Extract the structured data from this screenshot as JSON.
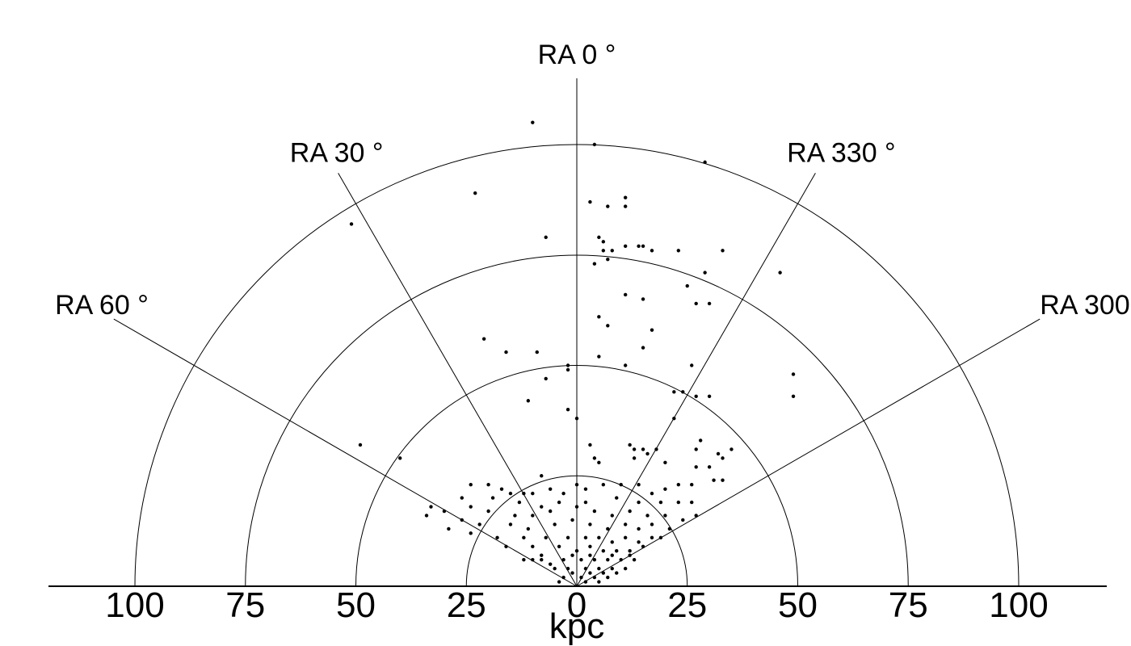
{
  "chart_data": {
    "type": "scatter",
    "projection": "polar wedge (cone diagram), semicircle",
    "xlabel": "kpc",
    "radius_ticks": [
      25,
      50,
      75,
      100
    ],
    "radius_tick_labels_left": [
      "100",
      "75",
      "50",
      "25"
    ],
    "center_tick_label": "0",
    "radius_tick_labels_right": [
      "25",
      "50",
      "75",
      "100"
    ],
    "rlim": [
      0,
      100
    ],
    "ra_angles_deg": [
      60,
      30,
      0,
      330,
      300
    ],
    "ra_labels": [
      "RA 60 °",
      "RA 30 °",
      "RA 0 °",
      "RA 330 °",
      "RA 300 °"
    ],
    "grid": true,
    "series": [
      {
        "points_xy_kpc": [
          [
            -10,
            105
          ],
          [
            4,
            100
          ],
          [
            29,
            96
          ],
          [
            -23,
            89
          ],
          [
            -51,
            82
          ],
          [
            3,
            87
          ],
          [
            11,
            88
          ],
          [
            7,
            86
          ],
          [
            11,
            86
          ],
          [
            -7,
            79
          ],
          [
            5,
            79
          ],
          [
            6,
            78
          ],
          [
            6,
            76
          ],
          [
            8,
            76
          ],
          [
            11,
            77
          ],
          [
            14,
            77
          ],
          [
            15,
            77
          ],
          [
            17,
            76
          ],
          [
            23,
            76
          ],
          [
            33,
            76
          ],
          [
            7,
            74
          ],
          [
            4,
            73
          ],
          [
            29,
            71
          ],
          [
            46,
            71
          ],
          [
            25,
            68
          ],
          [
            11,
            66
          ],
          [
            15,
            65
          ],
          [
            30,
            64
          ],
          [
            27,
            64
          ],
          [
            5,
            61
          ],
          [
            7,
            59
          ],
          [
            -21,
            56
          ],
          [
            17,
            58
          ],
          [
            -16,
            53
          ],
          [
            -9,
            53
          ],
          [
            -2,
            50
          ],
          [
            -2,
            49
          ],
          [
            5,
            52
          ],
          [
            11,
            50
          ],
          [
            15,
            54
          ],
          [
            26,
            50
          ],
          [
            -7,
            47
          ],
          [
            49,
            48
          ],
          [
            22,
            44
          ],
          [
            24,
            44
          ],
          [
            27,
            43
          ],
          [
            30,
            43
          ],
          [
            49,
            43
          ],
          [
            -11,
            42
          ],
          [
            -2,
            40
          ],
          [
            0,
            38
          ],
          [
            22,
            38
          ],
          [
            -49,
            32
          ],
          [
            3,
            32
          ],
          [
            12,
            32
          ],
          [
            13,
            31
          ],
          [
            15,
            31
          ],
          [
            18,
            31
          ],
          [
            27,
            31
          ],
          [
            28,
            33
          ],
          [
            35,
            31
          ],
          [
            4,
            29
          ],
          [
            -40,
            29
          ],
          [
            5,
            28
          ],
          [
            13,
            29
          ],
          [
            16,
            30
          ],
          [
            20,
            28
          ],
          [
            32,
            30
          ],
          [
            33,
            29
          ],
          [
            27,
            27
          ],
          [
            30,
            27
          ],
          [
            -8,
            25
          ],
          [
            -24,
            23
          ],
          [
            -20,
            23
          ],
          [
            -17,
            22
          ],
          [
            -15,
            21
          ],
          [
            -12,
            21
          ],
          [
            -10,
            21
          ],
          [
            -6,
            22
          ],
          [
            -3,
            21
          ],
          [
            0,
            23
          ],
          [
            2,
            22
          ],
          [
            6,
            23
          ],
          [
            10,
            23
          ],
          [
            14,
            23
          ],
          [
            17,
            21
          ],
          [
            20,
            22
          ],
          [
            23,
            23
          ],
          [
            26,
            23
          ],
          [
            31,
            24
          ],
          [
            33,
            24
          ],
          [
            -26,
            20
          ],
          [
            -19,
            20
          ],
          [
            -13,
            19
          ],
          [
            -8,
            18
          ],
          [
            -4,
            19
          ],
          [
            2,
            19
          ],
          [
            9,
            20
          ],
          [
            14,
            19
          ],
          [
            19,
            19
          ],
          [
            23,
            19
          ],
          [
            26,
            19
          ],
          [
            -33,
            18
          ],
          [
            -30,
            17
          ],
          [
            -24,
            18
          ],
          [
            -20,
            17
          ],
          [
            -14,
            16
          ],
          [
            -10,
            16
          ],
          [
            -6,
            17
          ],
          [
            0,
            18
          ],
          [
            4,
            17
          ],
          [
            8,
            16
          ],
          [
            12,
            17
          ],
          [
            16,
            16
          ],
          [
            20,
            16
          ],
          [
            24,
            15
          ],
          [
            27,
            16
          ],
          [
            -34,
            16
          ],
          [
            -26,
            15
          ],
          [
            -22,
            14
          ],
          [
            -15,
            14
          ],
          [
            -11,
            13
          ],
          [
            -5,
            14
          ],
          [
            -1,
            15
          ],
          [
            3,
            14
          ],
          [
            7,
            13
          ],
          [
            11,
            14
          ],
          [
            14,
            13
          ],
          [
            17,
            14
          ],
          [
            21,
            13
          ],
          [
            -29,
            13
          ],
          [
            -24,
            12
          ],
          [
            -18,
            11
          ],
          [
            -12,
            11
          ],
          [
            -7,
            11
          ],
          [
            -2,
            11
          ],
          [
            2,
            11
          ],
          [
            5,
            11
          ],
          [
            8,
            10
          ],
          [
            11,
            11
          ],
          [
            14,
            10
          ],
          [
            17,
            11
          ],
          [
            19,
            11
          ],
          [
            -16,
            9
          ],
          [
            -10,
            9
          ],
          [
            -4,
            9
          ],
          [
            0,
            8
          ],
          [
            3,
            9
          ],
          [
            6,
            8
          ],
          [
            9,
            8
          ],
          [
            12,
            8
          ],
          [
            15,
            9
          ],
          [
            -8,
            7
          ],
          [
            -3,
            6
          ],
          [
            1,
            6
          ],
          [
            4,
            6
          ],
          [
            7,
            6
          ],
          [
            10,
            6
          ],
          [
            13,
            6
          ],
          [
            -2,
            4
          ],
          [
            2,
            4
          ],
          [
            5,
            4
          ],
          [
            8,
            4
          ],
          [
            11,
            4
          ],
          [
            -10,
            6
          ],
          [
            -8,
            6
          ],
          [
            -6,
            5
          ],
          [
            -5,
            4
          ],
          [
            -1,
            3
          ],
          [
            3,
            3
          ],
          [
            6,
            3
          ],
          [
            9,
            3
          ],
          [
            -3,
            2
          ],
          [
            1,
            2
          ],
          [
            4,
            2
          ],
          [
            7,
            2
          ],
          [
            -4,
            1
          ],
          [
            2,
            1
          ],
          [
            5,
            1
          ],
          [
            -12,
            6
          ],
          [
            -1,
            7
          ],
          [
            3,
            7
          ],
          [
            8,
            7
          ],
          [
            12,
            7
          ]
        ]
      }
    ]
  }
}
